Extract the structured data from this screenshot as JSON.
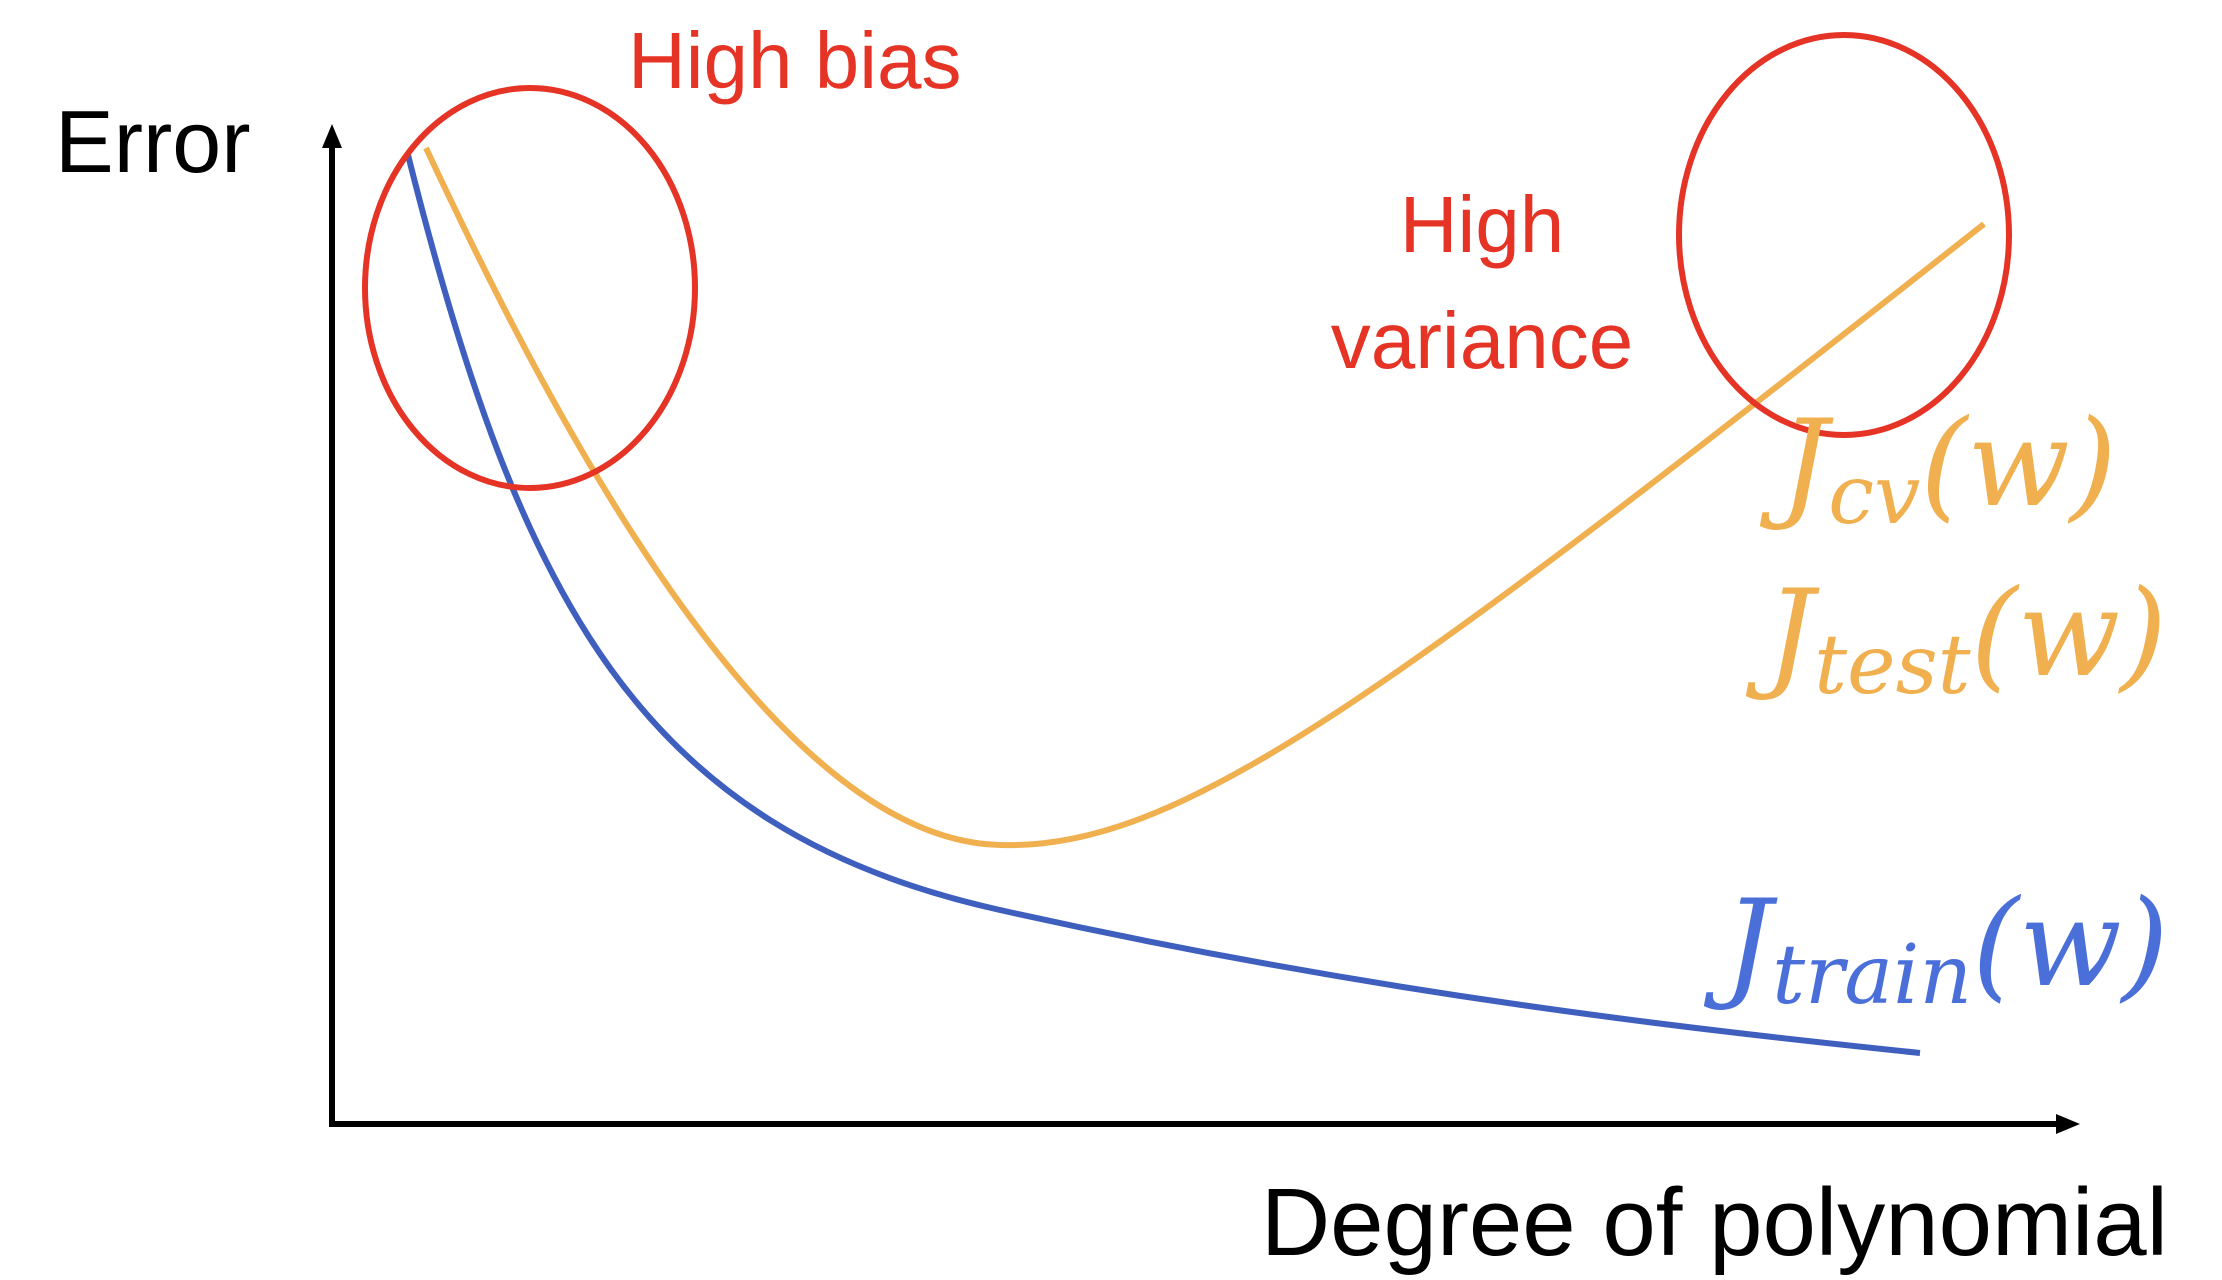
{
  "axes": {
    "y_label": "Error",
    "x_label": "Degree of polynomial"
  },
  "annotations": {
    "high_bias": "High bias",
    "high_variance_line1": "High",
    "high_variance_line2": "variance"
  },
  "curves": {
    "cv": {
      "label_main": "J",
      "label_sub": "cv",
      "label_arg": "(w)",
      "color": "#f0b04f"
    },
    "test": {
      "label_main": "J",
      "label_sub": "test",
      "label_arg": "(w)",
      "color": "#f0b04f"
    },
    "train": {
      "label_main": "J",
      "label_sub": "train",
      "label_arg": "(w)",
      "color": "#4a6fd8"
    }
  },
  "colors": {
    "axis": "#000000",
    "annotation": "#e53325",
    "circle": "#e53325",
    "cv_curve": "#f0b04f",
    "train_curve": "#3f5fbf"
  }
}
